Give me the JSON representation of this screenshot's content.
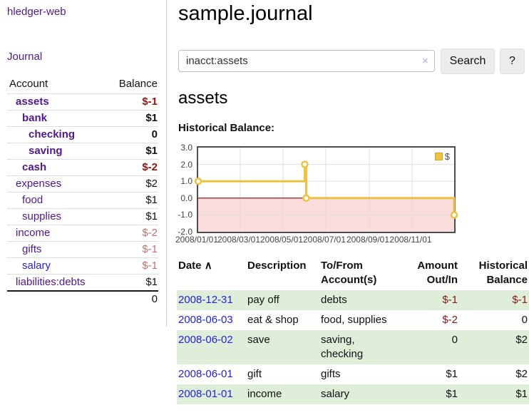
{
  "app": {
    "brand": "hledger-web"
  },
  "palette": {
    "link_purple": "#52188f",
    "link_blue": "#2222dd",
    "negative_strong": "#9b1212",
    "negative_faded": "#c56f6f",
    "negative_table": "#8c1616",
    "row_stripe_green": "#deeed9",
    "chart_series_yellow": "#edc240"
  },
  "sidebar": {
    "journal_label": "Journal",
    "accounts_table": {
      "headers": {
        "account": "Account",
        "balance": "Balance"
      },
      "rows": [
        {
          "label": "assets",
          "balance": "$-1"
        },
        {
          "label": "bank",
          "balance": "$1"
        },
        {
          "label": "checking",
          "balance": "0"
        },
        {
          "label": "saving",
          "balance": "$1"
        },
        {
          "label": "cash",
          "balance": "$-2"
        },
        {
          "label": "expenses",
          "balance": "$2"
        },
        {
          "label": "food",
          "balance": "$1"
        },
        {
          "label": "supplies",
          "balance": "$1"
        },
        {
          "label": "income",
          "balance": "$-2"
        },
        {
          "label": "gifts",
          "balance": "$-1"
        },
        {
          "label": "salary",
          "balance": "$-1"
        },
        {
          "label": "liabilities:debts",
          "balance": "$1"
        }
      ],
      "total": "0"
    }
  },
  "main": {
    "title": "sample.journal",
    "search": {
      "value": "inacct:assets",
      "clear_icon": "×",
      "button_label": "Search",
      "help_label": "?"
    },
    "account_heading": "assets",
    "chart_label": "Historical Balance:",
    "table": {
      "headers": {
        "date": "Date",
        "sort_icon": "∧",
        "description": "Description",
        "accounts": "To/From Account(s)",
        "amount": "Amount Out/In",
        "balance": "Historical Balance"
      },
      "rows": [
        {
          "date": "2008-12-31",
          "description": "pay off",
          "accounts": "debts",
          "amount": "$-1",
          "balance": "$-1"
        },
        {
          "date": "2008-06-03",
          "description": "eat & shop",
          "accounts": "food, supplies",
          "amount": "$-2",
          "balance": "0"
        },
        {
          "date": "2008-06-02",
          "description": "save",
          "accounts": "saving, checking",
          "amount": "0",
          "balance": "$2"
        },
        {
          "date": "2008-06-01",
          "description": "gift",
          "accounts": "gifts",
          "amount": "$1",
          "balance": "$2"
        },
        {
          "date": "2008-01-01",
          "description": "income",
          "accounts": "salary",
          "amount": "$1",
          "balance": "$1"
        }
      ]
    }
  },
  "chart_data": {
    "type": "line",
    "title": "Historical Balance:",
    "series": [
      {
        "name": "$",
        "color": "#edc240",
        "style": "steps",
        "points": [
          [
            "2008-01-01",
            1.0
          ],
          [
            "2008-06-01",
            2.0
          ],
          [
            "2008-06-03",
            0.0
          ],
          [
            "2008-12-31",
            -1.0
          ]
        ]
      }
    ],
    "xlim": [
      "2008-01-01",
      "2008-12-31"
    ],
    "ylim": [
      -2.0,
      3.0
    ],
    "x_tick_dates": [
      "2008-01-01",
      "2008-03-01",
      "2008-05-01",
      "2008-07-01",
      "2008-09-01",
      "2008-11-01"
    ],
    "x_tick_labels": [
      "2008/01/01",
      "2008/03/01",
      "2008/05/01",
      "2008/07/01",
      "2008/09/01",
      "2008/11/01"
    ],
    "y_ticks": [
      "3.0",
      "2.0",
      "1.0",
      "0.0",
      "-1.0",
      "-2.0"
    ],
    "grid": true,
    "gridline_color": "#dedede",
    "negative_region_color": "#fbdcdc",
    "zero_line_color": "#8f0000",
    "legend": {
      "position": "top-right",
      "label": "$",
      "swatch_color": "#edc240"
    }
  }
}
